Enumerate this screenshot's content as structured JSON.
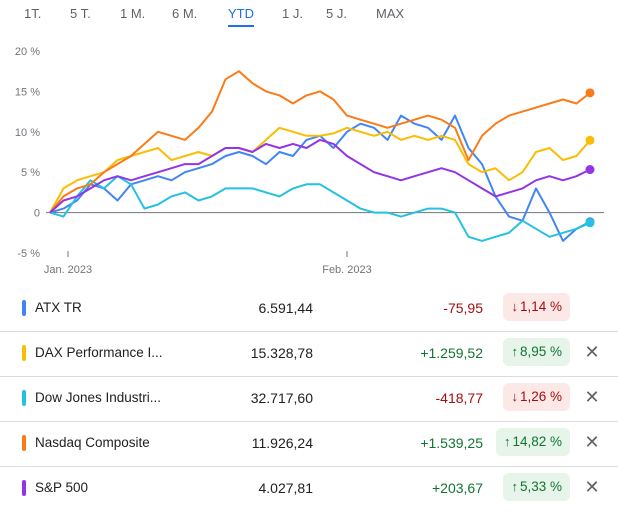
{
  "tabs": [
    {
      "label": "1T.",
      "active": false
    },
    {
      "label": "5 T.",
      "active": false
    },
    {
      "label": "1 M.",
      "active": false
    },
    {
      "label": "6 M.",
      "active": false
    },
    {
      "label": "YTD",
      "active": true
    },
    {
      "label": "1 J.",
      "active": false
    },
    {
      "label": "5 J.",
      "active": false
    },
    {
      "label": "MAX",
      "active": false
    }
  ],
  "colors": {
    "ATX TR": "#4285f4",
    "DAX Performance I...": "#fbbc04",
    "Dow Jones Industri...": "#24c1e0",
    "Nasdaq Composite": "#fa7b17",
    "S&P 500": "#9334e6"
  },
  "chart_data": {
    "type": "line",
    "x_axis": {
      "start": "2022-12-30",
      "end": "2023-02-28",
      "ticks": [
        {
          "date": "2023-01-01",
          "label": "Jan. 2023"
        },
        {
          "date": "2023-02-01",
          "label": "Feb. 2023"
        }
      ]
    },
    "y_axis": {
      "min": -5,
      "max": 20,
      "unit": "%",
      "ticks": [
        {
          "value": 20,
          "label": "20 %"
        },
        {
          "value": 15,
          "label": "15 %"
        },
        {
          "value": 10,
          "label": "10 %"
        },
        {
          "value": 5,
          "label": "5 %"
        },
        {
          "value": 0,
          "label": "0"
        },
        {
          "value": -5,
          "label": "-5 %"
        }
      ]
    },
    "grid": false,
    "series": [
      {
        "name": "ATX TR",
        "values": [
          0,
          0.5,
          1.5,
          3.5,
          3,
          1.5,
          3.5,
          4,
          4.5,
          4,
          5,
          5.5,
          6,
          7,
          7.5,
          7,
          6,
          7.5,
          7,
          9,
          9.5,
          8,
          10,
          11,
          10.5,
          9,
          12,
          11,
          10.5,
          9,
          12,
          8,
          6,
          2,
          -0.5,
          -1,
          3,
          0,
          -3.5,
          -2,
          -1.14
        ]
      },
      {
        "name": "DAX Performance I...",
        "values": [
          0,
          3,
          4,
          4.5,
          5,
          6.5,
          7,
          7.5,
          8,
          6.5,
          7,
          7.5,
          7,
          8,
          8,
          7.5,
          9,
          10.5,
          10,
          9.5,
          9.5,
          9.8,
          10.5,
          10,
          9.5,
          10,
          9,
          9.5,
          9,
          9.5,
          9,
          6,
          5,
          5.5,
          4,
          5,
          7.5,
          8,
          6.5,
          7,
          8.95
        ]
      },
      {
        "name": "Dow Jones Industri...",
        "values": [
          0,
          -0.5,
          2,
          4,
          3,
          4.5,
          3.5,
          0.5,
          1,
          2,
          2.5,
          1.5,
          2,
          3,
          3,
          3,
          2.5,
          2,
          3,
          3.5,
          3.5,
          2.5,
          1.5,
          0.5,
          0,
          0,
          -0.5,
          0,
          0.5,
          0.5,
          0,
          -3,
          -3.5,
          -3,
          -2.5,
          -1,
          -2,
          -3,
          -2.5,
          -2,
          -1.26
        ]
      },
      {
        "name": "Nasdaq Composite",
        "values": [
          0,
          2,
          3,
          3.5,
          5,
          6,
          7,
          8.5,
          10,
          9.5,
          9,
          10.5,
          12.5,
          16.5,
          17.5,
          16,
          15,
          14.5,
          13.5,
          14.5,
          15,
          14,
          12,
          11.5,
          11,
          10.5,
          11,
          11.5,
          12,
          11.5,
          10.5,
          6.5,
          9.5,
          11,
          12,
          12.5,
          13,
          13.5,
          14,
          13.5,
          14.82
        ]
      },
      {
        "name": "S&P 500",
        "values": [
          0,
          1.5,
          2,
          3,
          4,
          4.5,
          4,
          4.5,
          5,
          5.5,
          6,
          6,
          7,
          8,
          8,
          7.5,
          8.5,
          8,
          8.5,
          8,
          9,
          8.5,
          7,
          6,
          5,
          4.5,
          4,
          4.5,
          5,
          5.5,
          5,
          4,
          3,
          2,
          2.5,
          3,
          4,
          4.5,
          4,
          4.5,
          5.33
        ]
      }
    ]
  },
  "rows": [
    {
      "name": "ATX TR",
      "price": "6.591,44",
      "change": "-75,95",
      "pct": "1,14 %",
      "arrow": "↓",
      "dir": "neg",
      "color": "#4285f4",
      "closable": false
    },
    {
      "name": "DAX Performance I...",
      "price": "15.328,78",
      "change": "+1.259,52",
      "pct": "8,95 %",
      "arrow": "↑",
      "dir": "pos",
      "color": "#fbbc04",
      "closable": true
    },
    {
      "name": "Dow Jones Industri...",
      "price": "32.717,60",
      "change": "-418,77",
      "pct": "1,26 %",
      "arrow": "↓",
      "dir": "neg",
      "color": "#24c1e0",
      "closable": true
    },
    {
      "name": "Nasdaq Composite",
      "price": "11.926,24",
      "change": "+1.539,25",
      "pct": "14,82 %",
      "arrow": "↑",
      "dir": "pos",
      "color": "#fa7b17",
      "closable": true
    },
    {
      "name": "S&P 500",
      "price": "4.027,81",
      "change": "+203,67",
      "pct": "5,33 %",
      "arrow": "↑",
      "dir": "pos",
      "color": "#9334e6",
      "closable": true
    }
  ],
  "icons": {
    "close": "✕"
  }
}
